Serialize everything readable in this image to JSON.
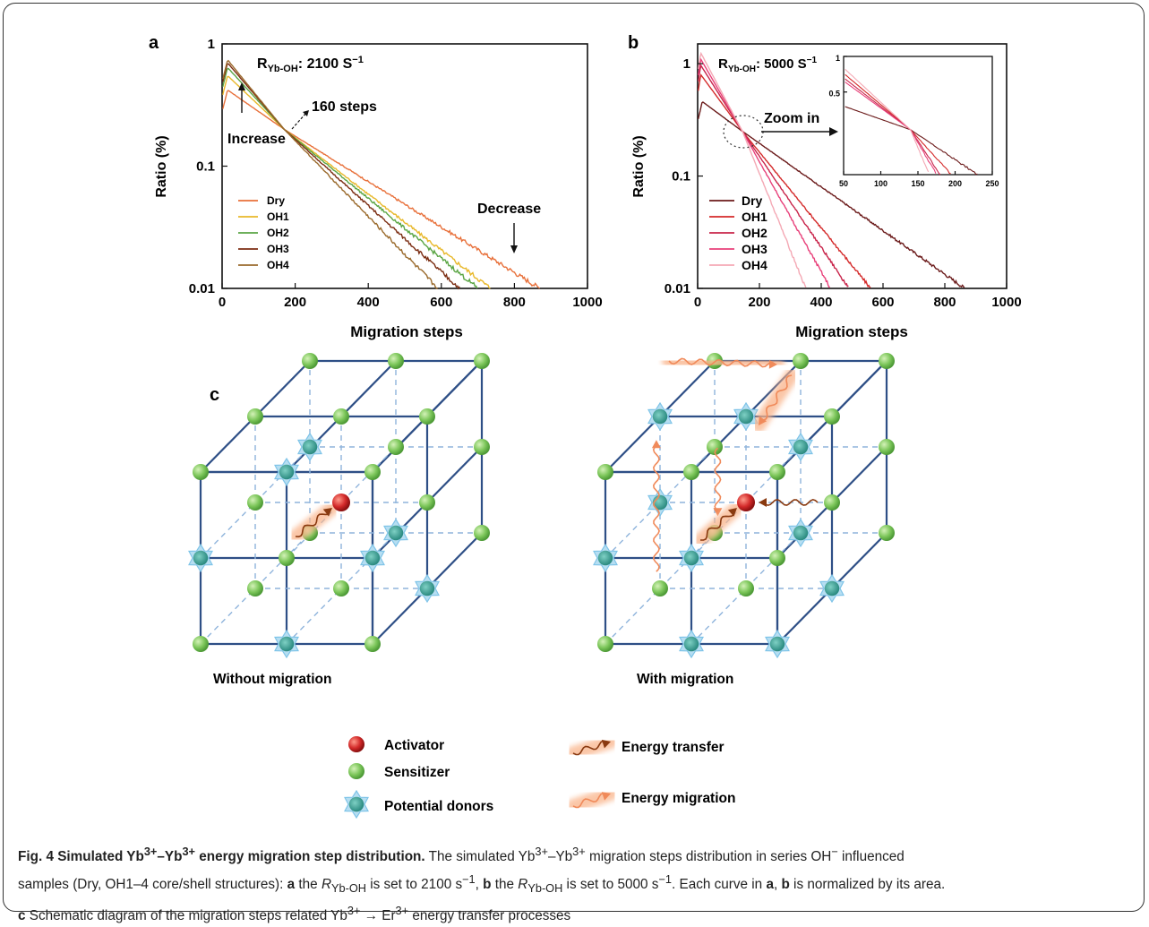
{
  "panels": {
    "a": {
      "letter": "a",
      "annotations": {
        "increase": "Increase",
        "steps160": "160 steps",
        "decrease": "Decrease"
      }
    },
    "b": {
      "letter": "b",
      "zoom_label": "Zoom in"
    },
    "c": {
      "letter": "c",
      "left_label": "Without migration",
      "right_label": "With migration",
      "legend": {
        "activator": "Activator",
        "sensitizer": "Sensitizer",
        "donors": "Potential donors",
        "energy_transfer": "Energy transfer",
        "energy_migration": "Energy migration"
      }
    }
  },
  "colors": {
    "a": [
      "#e8703a",
      "#e8b82a",
      "#5aa544",
      "#7b2d12",
      "#9a6a2c"
    ],
    "b": [
      "#6b1a1a",
      "#d42a2a",
      "#c8244a",
      "#e8407a",
      "#f4a8b4"
    ],
    "lattice": "#2e4f86",
    "sensitizer": "#7cc65a",
    "donor": "#7fc4e8",
    "activator": "#d32a2a",
    "arrow_glow": "#f9b48a"
  },
  "chart_data": [
    {
      "type": "line",
      "panel": "a",
      "title_prefix": "R",
      "title_sub": "Yb-OH",
      "title_value": ": 2100 S",
      "title_sup": "−1",
      "xlabel": "Migration steps",
      "ylabel": "Ratio (%)",
      "xlim": [
        0,
        1000
      ],
      "ylim": [
        0.01,
        1
      ],
      "yscale": "log",
      "xticks": [
        "0",
        "200",
        "400",
        "600",
        "800",
        "1000"
      ],
      "yticks": [
        "0.01",
        "0.1",
        "1"
      ],
      "legend_position": "lower-left",
      "series": [
        {
          "name": "Dry",
          "peak": [
            15,
            0.42
          ],
          "end": 870
        },
        {
          "name": "OH1",
          "peak": [
            15,
            0.55
          ],
          "end": 735
        },
        {
          "name": "OH2",
          "peak": [
            15,
            0.64
          ],
          "end": 700
        },
        {
          "name": "OH3",
          "peak": [
            15,
            0.7
          ],
          "end": 650
        },
        {
          "name": "OH4",
          "peak": [
            15,
            0.74
          ],
          "end": 590
        }
      ],
      "crossing": [
        170,
        0.2
      ]
    },
    {
      "type": "line",
      "panel": "b",
      "title_prefix": "R",
      "title_sub": "Yb-OH",
      "title_value": ": 5000 S",
      "title_sup": "−1",
      "xlabel": "Migration steps",
      "ylabel": "Ratio (%)",
      "xlim": [
        0,
        1000
      ],
      "ylim": [
        0.01,
        1.5
      ],
      "yscale": "log",
      "xticks": [
        "0",
        "200",
        "400",
        "600",
        "800",
        "1000"
      ],
      "yticks": [
        "0.01",
        "0.1",
        "1"
      ],
      "legend_position": "lower-left",
      "series": [
        {
          "name": "Dry",
          "peak": [
            15,
            0.46
          ],
          "end": 865
        },
        {
          "name": "OH1",
          "peak": [
            10,
            0.8
          ],
          "end": 560
        },
        {
          "name": "OH2",
          "peak": [
            10,
            0.97
          ],
          "end": 490
        },
        {
          "name": "OH3",
          "peak": [
            10,
            1.1
          ],
          "end": 430
        },
        {
          "name": "OH4",
          "peak": [
            10,
            1.25
          ],
          "end": 350
        }
      ],
      "crossing": [
        145,
        0.25
      ],
      "inset": {
        "xlim": [
          50,
          250
        ],
        "ylim": [
          0.1,
          1
        ],
        "xticks": [
          "50",
          "100",
          "150",
          "200",
          "250"
        ],
        "yticks": [
          "0.5",
          "1"
        ],
        "ends": [
          230,
          195,
          180,
          175,
          165
        ]
      }
    }
  ],
  "caption": {
    "title": "Fig. 4 Simulated Yb3+–Yb3+ energy migration step distribution.",
    "text": "The simulated Yb3+–Yb3+ migration steps distribution in series OH− influenced samples (Dry, OH1–4 core/shell structures): a the RYb-OH is set to 2100 s−1, b the RYb-OH is set to 5000 s−1. Each curve in a, b is normalized by its area. c Schematic diagram of the migration steps related Yb3+ → Er3+ energy transfer processes"
  }
}
